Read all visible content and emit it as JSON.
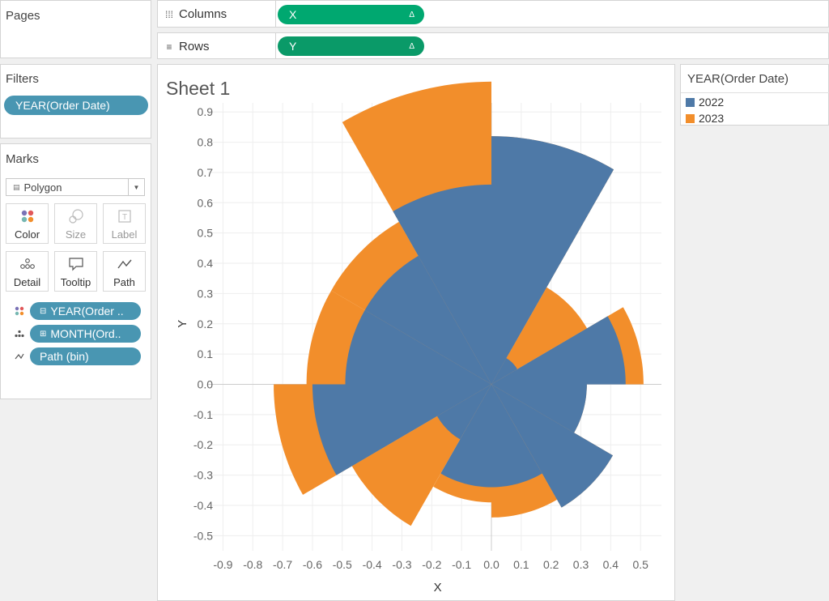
{
  "pages": {
    "title": "Pages"
  },
  "filters": {
    "title": "Filters",
    "pill": "YEAR(Order Date)"
  },
  "marks": {
    "title": "Marks",
    "type": "Polygon",
    "buttons": {
      "color": "Color",
      "size": "Size",
      "label": "Label",
      "detail": "Detail",
      "tooltip": "Tooltip",
      "path": "Path"
    },
    "pills": [
      {
        "prefix": "⊟",
        "label": "YEAR(Order .."
      },
      {
        "prefix": "⊞",
        "label": "MONTH(Ord.."
      },
      {
        "prefix": "",
        "label": "Path (bin)"
      }
    ]
  },
  "shelves": {
    "columns": {
      "label": "Columns",
      "pill": "X"
    },
    "rows": {
      "label": "Rows",
      "pill": "Y"
    }
  },
  "sheet": {
    "title": "Sheet 1"
  },
  "legend": {
    "title": "YEAR(Order Date)",
    "items": [
      {
        "label": "2022",
        "color": "#4e79a7"
      },
      {
        "label": "2023",
        "color": "#f28e2b"
      }
    ]
  },
  "chart_data": {
    "type": "radial-bar",
    "title": "Sheet 1",
    "xlabel": "X",
    "ylabel": "Y",
    "xlim": [
      -0.95,
      0.57
    ],
    "ylim": [
      -0.55,
      0.93
    ],
    "xticks": [
      "-0.9",
      "-0.8",
      "-0.7",
      "-0.6",
      "-0.5",
      "-0.4",
      "-0.3",
      "-0.2",
      "-0.1",
      "0.0",
      "0.1",
      "0.2",
      "0.3",
      "0.4",
      "0.5"
    ],
    "yticks": [
      "0.9",
      "0.8",
      "0.7",
      "0.6",
      "0.5",
      "0.4",
      "0.3",
      "0.2",
      "0.1",
      "0.0",
      "-0.1",
      "-0.2",
      "-0.3",
      "-0.4",
      "-0.5"
    ],
    "grid": true,
    "legend_position": "right",
    "colors": {
      "2022": "#4e79a7",
      "2023": "#f28e2b"
    },
    "series": [
      {
        "name": "2022",
        "segments": [
          {
            "start": 0,
            "end": 30,
            "r": 0.82
          },
          {
            "start": 30,
            "end": 60,
            "r": 0.1
          },
          {
            "start": 60,
            "end": 90,
            "r": 0.45
          },
          {
            "start": 90,
            "end": 120,
            "r": 0.32
          },
          {
            "start": 120,
            "end": 150,
            "r": 0.47
          },
          {
            "start": 150,
            "end": 180,
            "r": 0.34
          },
          {
            "start": 180,
            "end": 210,
            "r": 0.34
          },
          {
            "start": 210,
            "end": 240,
            "r": 0.21
          },
          {
            "start": 240,
            "end": 270,
            "r": 0.6
          },
          {
            "start": 270,
            "end": 300,
            "r": 0.49
          },
          {
            "start": 300,
            "end": 330,
            "r": 0.49
          },
          {
            "start": 330,
            "end": 360,
            "r": 0.66
          }
        ]
      },
      {
        "name": "2023",
        "segments": [
          {
            "start": 0,
            "end": 30,
            "r": 0.82
          },
          {
            "start": 30,
            "end": 60,
            "r": 0.37
          },
          {
            "start": 60,
            "end": 90,
            "r": 0.51
          },
          {
            "start": 90,
            "end": 120,
            "r": 0.32
          },
          {
            "start": 120,
            "end": 150,
            "r": 0.47
          },
          {
            "start": 150,
            "end": 180,
            "r": 0.44
          },
          {
            "start": 180,
            "end": 210,
            "r": 0.39
          },
          {
            "start": 210,
            "end": 240,
            "r": 0.54
          },
          {
            "start": 240,
            "end": 270,
            "r": 0.73
          },
          {
            "start": 270,
            "end": 300,
            "r": 0.62
          },
          {
            "start": 300,
            "end": 330,
            "r": 0.62
          },
          {
            "start": 330,
            "end": 360,
            "r": 1.0
          }
        ]
      }
    ]
  }
}
